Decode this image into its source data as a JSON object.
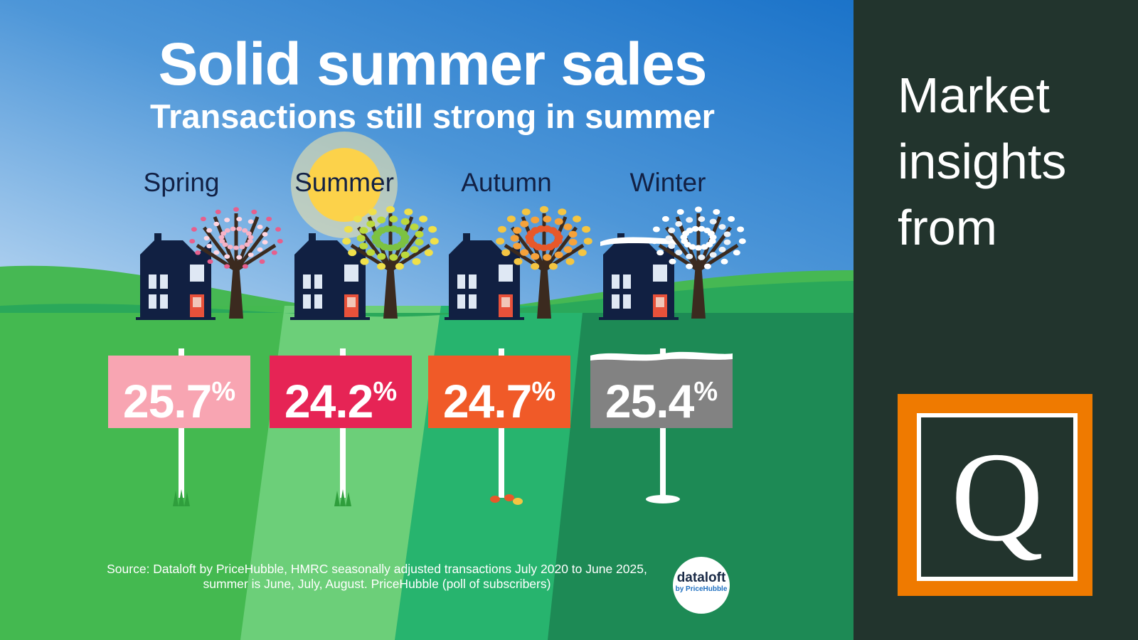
{
  "title": "Solid summer sales",
  "subtitle": "Transactions still strong in summer",
  "seasons": [
    {
      "name": "Spring",
      "value": "25.7",
      "unit": "%",
      "color": "#f8a5b2",
      "tree": "blossom"
    },
    {
      "name": "Summer",
      "value": "24.2",
      "unit": "%",
      "color": "#e62455",
      "tree": "leafy"
    },
    {
      "name": "Autumn",
      "value": "24.7",
      "unit": "%",
      "color": "#f05a28",
      "tree": "autumn"
    },
    {
      "name": "Winter",
      "value": "25.4",
      "unit": "%",
      "color": "#828282",
      "tree": "snow"
    }
  ],
  "source": "Source: Dataloft by PriceHubble, HMRC seasonally adjusted transactions July 2020 to June 2025, summer is June, July, August. PriceHubble (poll of subscribers)",
  "badge": {
    "line1": "dataloft",
    "line2": "by PriceHubble"
  },
  "side": {
    "heading": "Market\ninsights\nfrom",
    "logo_letter": "Q",
    "logo_color": "#ef7a00",
    "background": "#22342d"
  }
}
